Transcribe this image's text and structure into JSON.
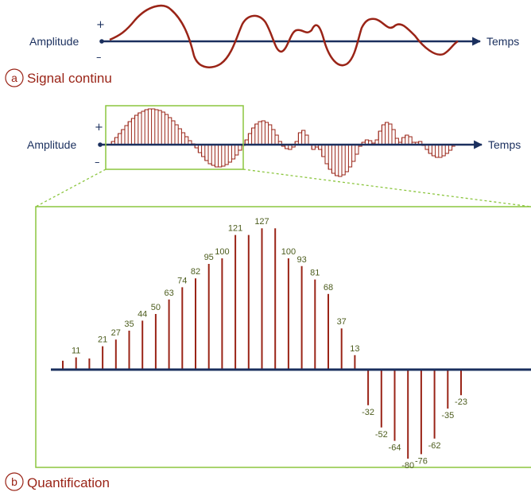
{
  "colors": {
    "axis": "#1a2f5e",
    "signal": "#9a2417",
    "frame": "#8cc63f",
    "value_label": "#4d5d1e"
  },
  "panel_a": {
    "y_label": "Amplitude",
    "x_label": "Temps",
    "plus": "+",
    "minus": "–",
    "caption_letter": "a",
    "caption": "Signal continu"
  },
  "panel_mid": {
    "y_label": "Amplitude",
    "x_label": "Temps",
    "plus": "+",
    "minus": "–"
  },
  "panel_b": {
    "caption_letter": "b",
    "caption": "Quantification"
  },
  "chart_data": {
    "type": "bar",
    "description_of_units": "quantized sample amplitudes",
    "values": [
      8,
      11,
      10,
      21,
      27,
      35,
      44,
      50,
      63,
      74,
      82,
      95,
      100,
      121,
      121,
      127,
      127,
      100,
      93,
      81,
      68,
      37,
      13,
      -32,
      -52,
      -64,
      -80,
      -76,
      -62,
      -35,
      -23
    ],
    "labels": [
      "",
      "11",
      "",
      "21",
      "27",
      "35",
      "44",
      "50",
      "63",
      "74",
      "82",
      "95",
      "100",
      "121",
      "",
      "127",
      "",
      "100",
      "93",
      "81",
      "68",
      "37",
      "13",
      "-32",
      "-52",
      "-64",
      "-80",
      "-76",
      "-62",
      "-35",
      "-23"
    ]
  }
}
